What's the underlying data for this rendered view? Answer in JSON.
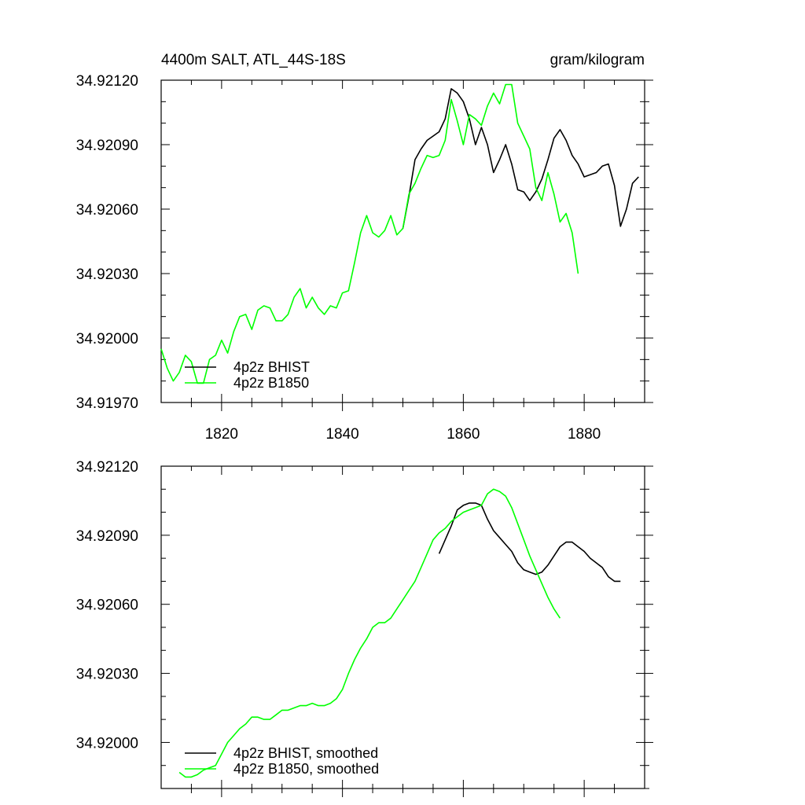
{
  "chart_data": [
    {
      "type": "line",
      "title": "4400m SALT, ATL_44S-18S",
      "units": "gram/kilogram",
      "xlim": [
        1810,
        1890
      ],
      "ylim": [
        34.9197,
        34.9212
      ],
      "x_ticks": [
        "1820",
        "1840",
        "1860",
        "1880"
      ],
      "y_ticks": [
        "34.91970",
        "34.92000",
        "34.92030",
        "34.92060",
        "34.92090",
        "34.92120"
      ],
      "legend": "bottom-left",
      "series": [
        {
          "name": "4p2z BHIST",
          "color": "#000000",
          "x": [
            1850,
            1851,
            1852,
            1853,
            1854,
            1855,
            1856,
            1857,
            1858,
            1859,
            1860,
            1861,
            1862,
            1863,
            1864,
            1865,
            1866,
            1867,
            1868,
            1869,
            1870,
            1871,
            1872,
            1873,
            1874,
            1875,
            1876,
            1877,
            1878,
            1879,
            1880,
            1881,
            1882,
            1883,
            1884,
            1885,
            1886,
            1887,
            1888,
            1889
          ],
          "y": [
            34.92051,
            34.92066,
            34.92083,
            34.92088,
            34.92092,
            34.92094,
            34.92096,
            34.92102,
            34.92116,
            34.92114,
            34.9211,
            34.92102,
            34.9209,
            34.92098,
            34.9209,
            34.92077,
            34.92083,
            34.9209,
            34.92081,
            34.92069,
            34.92068,
            34.92064,
            34.92068,
            34.92074,
            34.92083,
            34.92093,
            34.92097,
            34.92092,
            34.92085,
            34.92081,
            34.92075,
            34.92076,
            34.92077,
            34.9208,
            34.92081,
            34.92071,
            34.92052,
            34.9206,
            34.92072,
            34.92075
          ]
        },
        {
          "name": "4p2z B1850",
          "color": "#00ff00",
          "x": [
            1810,
            1811,
            1812,
            1813,
            1814,
            1815,
            1816,
            1817,
            1818,
            1819,
            1820,
            1821,
            1822,
            1823,
            1824,
            1825,
            1826,
            1827,
            1828,
            1829,
            1830,
            1831,
            1832,
            1833,
            1834,
            1835,
            1836,
            1837,
            1838,
            1839,
            1840,
            1841,
            1842,
            1843,
            1844,
            1845,
            1846,
            1847,
            1848,
            1849,
            1850,
            1851,
            1852,
            1853,
            1854,
            1855,
            1856,
            1857,
            1858,
            1859,
            1860,
            1861,
            1862,
            1863,
            1864,
            1865,
            1866,
            1867,
            1868,
            1869,
            1870,
            1871,
            1872,
            1873,
            1874,
            1875,
            1876,
            1877,
            1878,
            1879
          ],
          "y": [
            34.91995,
            34.91986,
            34.9198,
            34.91984,
            34.91992,
            34.91989,
            34.91979,
            34.91979,
            34.9199,
            34.91992,
            34.91999,
            34.91993,
            34.92003,
            34.9201,
            34.92011,
            34.92004,
            34.92013,
            34.92015,
            34.92014,
            34.92008,
            34.92008,
            34.92011,
            34.92019,
            34.92023,
            34.92014,
            34.92019,
            34.92014,
            34.92011,
            34.92015,
            34.92014,
            34.92021,
            34.92022,
            34.92035,
            34.92049,
            34.92057,
            34.92049,
            34.92047,
            34.9205,
            34.92057,
            34.92048,
            34.92051,
            34.92067,
            34.92072,
            34.92079,
            34.92085,
            34.92084,
            34.92085,
            34.92092,
            34.92111,
            34.92101,
            34.9209,
            34.92104,
            34.92102,
            34.92099,
            34.92108,
            34.92114,
            34.92109,
            34.92118,
            34.92118,
            34.921,
            34.92094,
            34.92088,
            34.9207,
            34.92064,
            34.92077,
            34.92067,
            34.92054,
            34.92058,
            34.92049,
            34.9203
          ]
        }
      ]
    },
    {
      "type": "line",
      "title": "",
      "units": "",
      "xlim": [
        1810,
        1890
      ],
      "ylim": [
        34.9198,
        34.9212
      ],
      "x_ticks": [],
      "y_ticks": [
        "34.92000",
        "34.92030",
        "34.92060",
        "34.92090",
        "34.92120"
      ],
      "legend": "bottom-left",
      "series": [
        {
          "name": "4p2z BHIST, smoothed",
          "color": "#000000",
          "x": [
            1856,
            1857,
            1858,
            1859,
            1860,
            1861,
            1862,
            1863,
            1864,
            1865,
            1866,
            1867,
            1868,
            1869,
            1870,
            1871,
            1872,
            1873,
            1874,
            1875,
            1876,
            1877,
            1878,
            1879,
            1880,
            1881,
            1882,
            1883,
            1884,
            1885,
            1886
          ],
          "y": [
            34.92082,
            34.92088,
            34.92094,
            34.92101,
            34.92103,
            34.92104,
            34.92104,
            34.92103,
            34.92097,
            34.92092,
            34.92089,
            34.92086,
            34.92083,
            34.92078,
            34.92075,
            34.92074,
            34.92073,
            34.92074,
            34.92077,
            34.92081,
            34.92085,
            34.92087,
            34.92087,
            34.92085,
            34.92083,
            34.9208,
            34.92078,
            34.92076,
            34.92072,
            34.9207,
            34.9207
          ]
        },
        {
          "name": "4p2z B1850, smoothed",
          "color": "#00ff00",
          "x": [
            1813,
            1814,
            1815,
            1816,
            1817,
            1818,
            1819,
            1820,
            1821,
            1822,
            1823,
            1824,
            1825,
            1826,
            1827,
            1828,
            1829,
            1830,
            1831,
            1832,
            1833,
            1834,
            1835,
            1836,
            1837,
            1838,
            1839,
            1840,
            1841,
            1842,
            1843,
            1844,
            1845,
            1846,
            1847,
            1848,
            1849,
            1850,
            1851,
            1852,
            1853,
            1854,
            1855,
            1856,
            1857,
            1858,
            1859,
            1860,
            1861,
            1862,
            1863,
            1864,
            1865,
            1866,
            1867,
            1868,
            1869,
            1870,
            1871,
            1872,
            1873,
            1874,
            1875,
            1876
          ],
          "y": [
            34.91987,
            34.91985,
            34.91985,
            34.91986,
            34.91988,
            34.91989,
            34.9199,
            34.91995,
            34.92,
            34.92003,
            34.92006,
            34.92008,
            34.92011,
            34.92011,
            34.9201,
            34.9201,
            34.92012,
            34.92014,
            34.92014,
            34.92015,
            34.92016,
            34.92016,
            34.92017,
            34.92016,
            34.92016,
            34.92017,
            34.92019,
            34.92023,
            34.9203,
            34.92036,
            34.92041,
            34.92045,
            34.9205,
            34.92052,
            34.92052,
            34.92054,
            34.92058,
            34.92062,
            34.92066,
            34.9207,
            34.92076,
            34.92082,
            34.92088,
            34.92091,
            34.92093,
            34.92096,
            34.92098,
            34.921,
            34.92101,
            34.92102,
            34.92103,
            34.92108,
            34.9211,
            34.92109,
            34.92107,
            34.92102,
            34.92095,
            34.92088,
            34.92081,
            34.92075,
            34.92069,
            34.92063,
            34.92058,
            34.92054
          ]
        }
      ]
    }
  ]
}
